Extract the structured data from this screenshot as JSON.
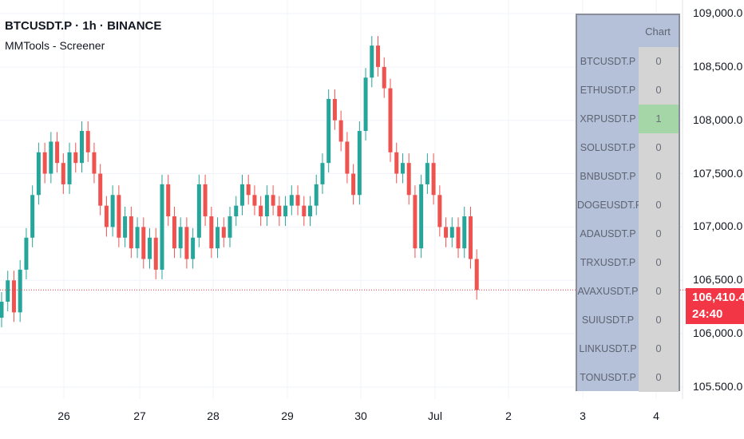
{
  "header": {
    "symbol": "BTCUSDT.P · 1h · BINANCE",
    "indicator": "MMTools - Screener"
  },
  "colors": {
    "up": "#26a69a",
    "down": "#ef5350",
    "table_label_bg": "#b5c1d9",
    "table_value_bg": "#d4d4d4",
    "table_highlight": "#a5d6a7",
    "price_badge": "#f23645"
  },
  "screener": {
    "header": "Chart",
    "rows": [
      {
        "symbol": "BTCUSDT.P",
        "value": "0"
      },
      {
        "symbol": "ETHUSDT.P",
        "value": "0"
      },
      {
        "symbol": "XRPUSDT.P",
        "value": "1",
        "highlight": true
      },
      {
        "symbol": "SOLUSDT.P",
        "value": "0"
      },
      {
        "symbol": "BNBUSDT.P",
        "value": "0"
      },
      {
        "symbol": "DOGEUSDT.P",
        "value": "0"
      },
      {
        "symbol": "ADAUSDT.P",
        "value": "0"
      },
      {
        "symbol": "TRXUSDT.P",
        "value": "0"
      },
      {
        "symbol": "AVAXUSDT.P",
        "value": "0"
      },
      {
        "symbol": "SUIUSDT.P",
        "value": "0"
      },
      {
        "symbol": "LINKUSDT.P",
        "value": "0"
      },
      {
        "symbol": "TONUSDT.P",
        "value": "0"
      }
    ]
  },
  "price_badge": {
    "price": "106,410.4",
    "countdown": "24:40"
  },
  "chart_data": {
    "type": "candlestick",
    "y_ticks": [
      "109,000.0",
      "108,500.0",
      "108,000.0",
      "107,500.0",
      "107,000.0",
      "106,500.0",
      "106,000.0",
      "105.500.0"
    ],
    "y_tick_values": [
      109000,
      108500,
      108000,
      107500,
      107000,
      106500,
      106000,
      105500
    ],
    "x_ticks": [
      "26",
      "27",
      "28",
      "29",
      "30",
      "Jul",
      "2",
      "3",
      "4"
    ],
    "ylim": [
      105400,
      109100
    ],
    "closes": [
      106300,
      106500,
      106200,
      106600,
      106900,
      107300,
      107700,
      107500,
      107800,
      107600,
      107400,
      107700,
      107600,
      107900,
      107700,
      107500,
      107200,
      107000,
      107300,
      106900,
      107100,
      106800,
      107000,
      106700,
      106900,
      106600,
      107400,
      107100,
      106800,
      107000,
      106700,
      106900,
      107400,
      107100,
      106800,
      107000,
      106900,
      107100,
      107200,
      107400,
      107300,
      107200,
      107100,
      107300,
      107200,
      107100,
      107200,
      107300,
      107200,
      107100,
      107200,
      107400,
      107600,
      108200,
      108000,
      107800,
      107500,
      107300,
      107900,
      108400,
      108700,
      108500,
      108300,
      107700,
      107500,
      107600,
      107300,
      106800,
      107400,
      107600,
      107300,
      107000,
      106900,
      107000,
      106800,
      107100,
      106700,
      106410
    ]
  }
}
